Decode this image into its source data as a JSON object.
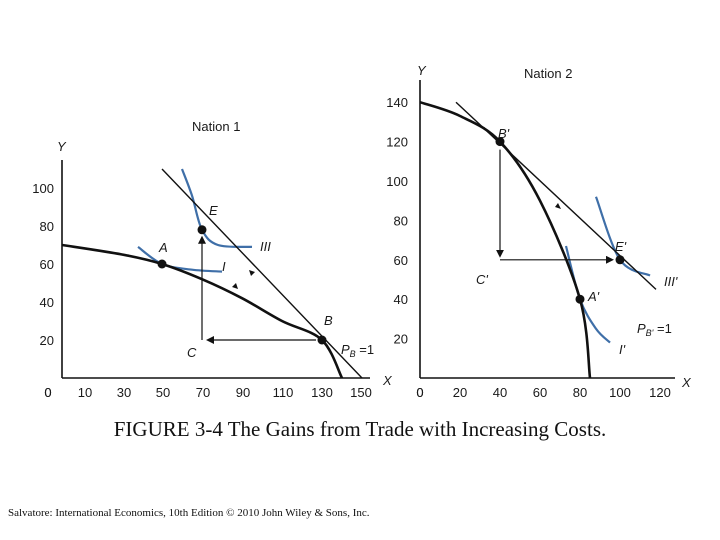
{
  "caption": {
    "label": "FIGURE 3-4",
    "text": "The Gains from Trade with Increasing Costs."
  },
  "credit": "Salvatore: International Economics, 10th Edition © 2010 John Wiley & Sons, Inc.",
  "colors": {
    "curve": "#111111",
    "indifference": "#3f6fa8",
    "text": "#1a1a1a"
  },
  "chart_data": [
    {
      "type": "line",
      "title": "Nation 1",
      "xlabel": "X",
      "ylabel": "Y",
      "x_ticks": [
        0,
        10,
        30,
        50,
        70,
        90,
        110,
        130,
        150
      ],
      "y_ticks": [
        20,
        40,
        60,
        80,
        100
      ],
      "xlim": [
        0,
        150
      ],
      "ylim": [
        0,
        100
      ],
      "ppf": {
        "x": [
          0,
          30,
          50,
          70,
          90,
          110,
          130,
          140
        ],
        "y": [
          70,
          65,
          60,
          52,
          42,
          30,
          20,
          0
        ]
      },
      "indifference_curves": [
        {
          "name": "I",
          "points": {
            "x": [
              38,
              50,
              65,
              80
            ],
            "y": [
              69,
              60,
              57,
              56
            ]
          }
        },
        {
          "name": "III",
          "points": {
            "x": [
              60,
              65,
              70,
              78,
              95
            ],
            "y": [
              110,
              96,
              78,
              70,
              69
            ]
          }
        }
      ],
      "price_line": {
        "name": "P_B=1",
        "from": [
          50,
          110
        ],
        "to": [
          150,
          0
        ]
      },
      "points": [
        {
          "name": "A",
          "x": 50,
          "y": 60
        },
        {
          "name": "E",
          "x": 70,
          "y": 78
        },
        {
          "name": "B",
          "x": 130,
          "y": 20
        }
      ],
      "trade_triangle": {
        "corner_label": "C",
        "corner": [
          70,
          20
        ],
        "export_to": [
          130,
          20
        ],
        "import_to": [
          70,
          78
        ]
      }
    },
    {
      "type": "line",
      "title": "Nation 2",
      "xlabel": "X",
      "ylabel": "Y",
      "x_ticks": [
        0,
        20,
        40,
        60,
        80,
        100,
        120
      ],
      "y_ticks": [
        20,
        40,
        60,
        80,
        100,
        120,
        140
      ],
      "xlim": [
        0,
        120
      ],
      "ylim": [
        0,
        140
      ],
      "ppf": {
        "x": [
          0,
          20,
          40,
          60,
          80,
          85
        ],
        "y": [
          140,
          133,
          120,
          90,
          40,
          0
        ]
      },
      "indifference_curves": [
        {
          "name": "I'",
          "points": {
            "x": [
              73,
              80,
              88,
              95
            ],
            "y": [
              67,
              40,
              25,
              18
            ]
          }
        },
        {
          "name": "III'",
          "points": {
            "x": [
              88,
              100,
              115
            ],
            "y": [
              92,
              60,
              52
            ]
          }
        }
      ],
      "price_line": {
        "name": "P_B'=1",
        "from": [
          18,
          140
        ],
        "to": [
          118,
          45
        ]
      },
      "points": [
        {
          "name": "B'",
          "x": 40,
          "y": 120
        },
        {
          "name": "E'",
          "x": 100,
          "y": 60
        },
        {
          "name": "A'",
          "x": 80,
          "y": 40
        }
      ],
      "trade_triangle": {
        "corner_label": "C'",
        "corner": [
          40,
          60
        ],
        "export_to": [
          40,
          120
        ],
        "import_to": [
          100,
          60
        ]
      }
    }
  ],
  "panel1_labels": {
    "title": "Nation 1",
    "ylabel": "Y",
    "xlabel": "X",
    "A": "A",
    "E": "E",
    "B": "B",
    "C": "C",
    "I": "I",
    "III": "III",
    "price_prefix": "P",
    "price_sub": "B",
    "price_suffix": " =1"
  },
  "panel2_labels": {
    "title": "Nation 2",
    "ylabel": "Y",
    "xlabel": "X",
    "A": "A'",
    "E": "E'",
    "B": "B'",
    "C": "C'",
    "I": "I'",
    "III": "III'",
    "price_prefix": "P",
    "price_sub": "B'",
    "price_suffix": " =1"
  }
}
